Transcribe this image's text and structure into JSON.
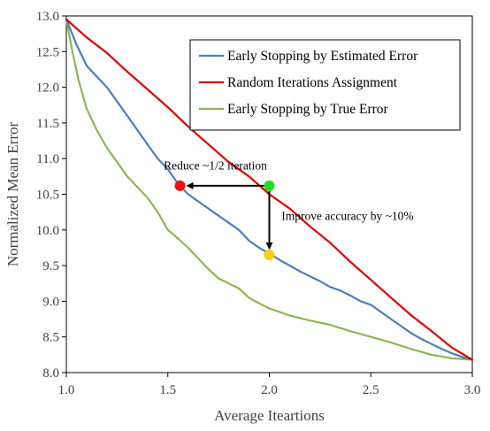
{
  "chart_data": {
    "type": "line",
    "title": "",
    "xlabel": "Average Iteartions",
    "ylabel": "Normalized Mean Error",
    "xlim": [
      1.0,
      3.0
    ],
    "ylim": [
      8.0,
      13.0
    ],
    "xticks": [
      "1.0",
      "1.5",
      "2.0",
      "2.5",
      "3.0"
    ],
    "yticks": [
      "8.0",
      "8.5",
      "9.0",
      "9.5",
      "10.0",
      "10.5",
      "11.0",
      "11.5",
      "12.0",
      "12.5",
      "13.0"
    ],
    "grid": false,
    "legend_position": "top-right",
    "series": [
      {
        "name": "Early Stopping by Estimated Error",
        "color": "#4a7ebb",
        "x": [
          1.0,
          1.05,
          1.1,
          1.15,
          1.2,
          1.25,
          1.3,
          1.35,
          1.4,
          1.45,
          1.5,
          1.55,
          1.6,
          1.65,
          1.7,
          1.75,
          1.8,
          1.85,
          1.9,
          1.95,
          2.0,
          2.05,
          2.1,
          2.15,
          2.2,
          2.25,
          2.3,
          2.35,
          2.4,
          2.45,
          2.5,
          2.55,
          2.6,
          2.65,
          2.7,
          2.75,
          2.8,
          2.85,
          2.9,
          2.95,
          3.0
        ],
        "y": [
          12.95,
          12.6,
          12.3,
          12.15,
          12.0,
          11.8,
          11.6,
          11.4,
          11.2,
          11.0,
          10.85,
          10.65,
          10.5,
          10.4,
          10.3,
          10.2,
          10.1,
          10.0,
          9.85,
          9.75,
          9.67,
          9.58,
          9.5,
          9.42,
          9.35,
          9.28,
          9.2,
          9.15,
          9.08,
          9.0,
          8.95,
          8.85,
          8.75,
          8.65,
          8.55,
          8.47,
          8.4,
          8.33,
          8.27,
          8.22,
          8.18
        ]
      },
      {
        "name": "Random Iterations Assignment",
        "color": "#e00000",
        "x": [
          1.0,
          1.1,
          1.2,
          1.3,
          1.4,
          1.5,
          1.6,
          1.7,
          1.8,
          1.9,
          2.0,
          2.1,
          2.2,
          2.3,
          2.4,
          2.5,
          2.6,
          2.7,
          2.8,
          2.9,
          3.0
        ],
        "y": [
          12.95,
          12.7,
          12.48,
          12.22,
          11.97,
          11.72,
          11.45,
          11.2,
          10.95,
          10.75,
          10.5,
          10.3,
          10.05,
          9.82,
          9.55,
          9.3,
          9.05,
          8.8,
          8.58,
          8.35,
          8.18
        ]
      },
      {
        "name": "Early Stopping by True Error",
        "color": "#8db652",
        "x": [
          1.0,
          1.03,
          1.06,
          1.1,
          1.15,
          1.2,
          1.25,
          1.3,
          1.35,
          1.4,
          1.45,
          1.5,
          1.55,
          1.6,
          1.65,
          1.7,
          1.75,
          1.8,
          1.85,
          1.9,
          1.95,
          2.0,
          2.1,
          2.2,
          2.3,
          2.4,
          2.5,
          2.6,
          2.7,
          2.8,
          2.9,
          3.0
        ],
        "y": [
          12.95,
          12.5,
          12.1,
          11.7,
          11.4,
          11.15,
          10.95,
          10.75,
          10.6,
          10.45,
          10.25,
          10.0,
          9.88,
          9.75,
          9.6,
          9.45,
          9.32,
          9.25,
          9.18,
          9.05,
          8.97,
          8.9,
          8.8,
          8.73,
          8.67,
          8.58,
          8.5,
          8.42,
          8.33,
          8.25,
          8.2,
          8.18
        ]
      }
    ],
    "markers": [
      {
        "name": "start-point",
        "x": 2.0,
        "y": 10.62,
        "color": "#22dd22"
      },
      {
        "name": "reduced-iteration-point",
        "x": 1.56,
        "y": 10.62,
        "color": "#ee1111"
      },
      {
        "name": "improved-accuracy-point",
        "x": 2.0,
        "y": 9.65,
        "color": "#ffcc11"
      }
    ],
    "annotations": [
      {
        "text": "Reduce ~1/2  iteration",
        "x": 1.48,
        "y": 10.85
      },
      {
        "text": "Improve accuracy by ~10%",
        "x": 2.06,
        "y": 10.14
      }
    ]
  }
}
